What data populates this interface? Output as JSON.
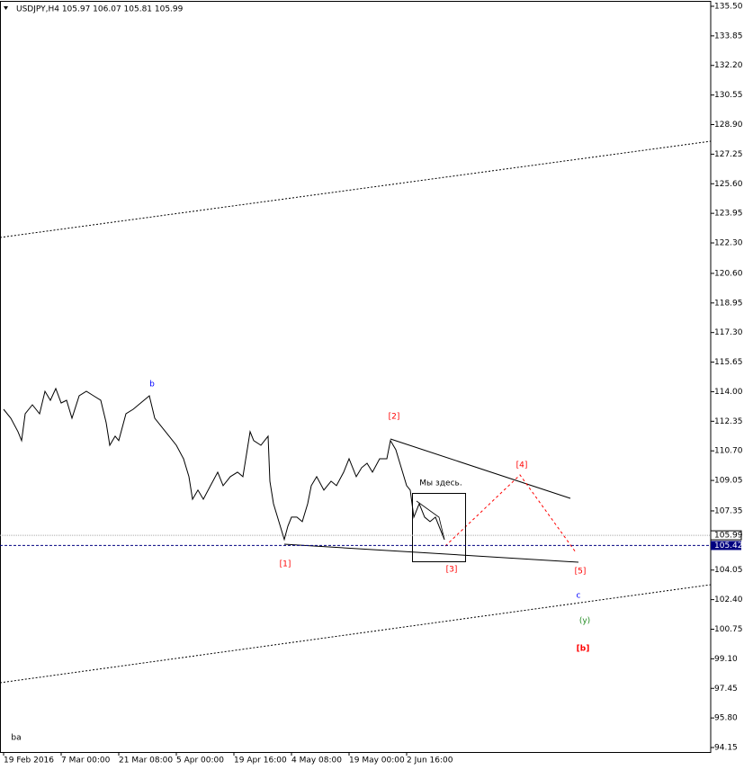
{
  "chart_data": {
    "type": "line",
    "title": "USDJPY,H4  105.97 106.07 105.81 105.99",
    "x": [
      0,
      2,
      4,
      5,
      6,
      8,
      10,
      11.5,
      13,
      14.5,
      16,
      17.5,
      19,
      21,
      23,
      25,
      27,
      28.5,
      29.5,
      31,
      32,
      34,
      36,
      39,
      40.5,
      42,
      44,
      46,
      48,
      50,
      51.5,
      52.5,
      54,
      55.5,
      57.5,
      59.5,
      61,
      63,
      65,
      66.5,
      67.5,
      68.5,
      69.5,
      71.5,
      73.5,
      74,
      75,
      76.5,
      78,
      79,
      80,
      81.5,
      83,
      84.5,
      85.5,
      87,
      89,
      91,
      92.5,
      94.5,
      96,
      98,
      99.5,
      101,
      102.5,
      104.5,
      106.5,
      107.5,
      109,
      110.5,
      112,
      113,
      114,
      115.5,
      117,
      118.5,
      120,
      121.5,
      122.5
    ],
    "values": [
      113.02,
      112.52,
      111.77,
      111.27,
      112.77,
      113.27,
      112.77,
      114.02,
      113.52,
      114.18,
      113.37,
      113.52,
      112.52,
      113.77,
      114.02,
      113.77,
      113.52,
      112.27,
      111.01,
      111.52,
      111.27,
      112.77,
      113.02,
      113.52,
      113.77,
      112.52,
      112.02,
      111.52,
      111.01,
      110.26,
      109.26,
      108.0,
      108.51,
      108.0,
      108.76,
      109.51,
      108.76,
      109.26,
      109.51,
      109.26,
      110.51,
      111.77,
      111.27,
      111.01,
      111.52,
      109.01,
      107.75,
      106.75,
      105.75,
      106.5,
      107.0,
      107.0,
      106.75,
      107.75,
      108.76,
      109.26,
      108.51,
      109.01,
      108.76,
      109.51,
      110.26,
      109.26,
      109.76,
      110.01,
      109.51,
      110.26,
      110.26,
      111.27,
      110.76,
      109.76,
      108.76,
      108.51,
      107.0,
      107.75,
      107.0,
      106.75,
      107.0,
      106.25,
      105.75
    ],
    "color": "#000000",
    "xlim": [
      -1,
      196.5
    ],
    "xticks": [
      {
        "value": 0,
        "label": "19 Feb 2016"
      },
      {
        "value": 16,
        "label": "7 Mar 00:00"
      },
      {
        "value": 32,
        "label": "21 Mar 08:00"
      },
      {
        "value": 48,
        "label": "5 Apr 00:00"
      },
      {
        "value": 64,
        "label": "19 Apr 16:00"
      },
      {
        "value": 80,
        "label": "4 May 08:00"
      },
      {
        "value": 96,
        "label": "19 May 00:00"
      },
      {
        "value": 112,
        "label": "2 Jun 16:00"
      }
    ],
    "ylim": [
      93.9,
      135.75
    ],
    "yticks": [
      {
        "value": 135.5,
        "label": "135.50"
      },
      133.85,
      {
        "value": 132.2,
        "label": "132.20"
      },
      130.55,
      {
        "value": 128.9,
        "label": "128.90"
      },
      127.25,
      {
        "value": 125.6,
        "label": "125.60"
      },
      123.95,
      {
        "value": 122.3,
        "label": "122.30"
      },
      {
        "value": 120.6,
        "label": "120.60"
      },
      118.95,
      {
        "value": 117.3,
        "label": "117.30"
      },
      115.65,
      {
        "value": 114.0,
        "label": "114.00"
      },
      112.35,
      {
        "value": 110.7,
        "label": "110.70"
      },
      109.05,
      107.35,
      104.05,
      {
        "value": 102.4,
        "label": "102.40"
      },
      100.75,
      {
        "value": 99.1,
        "label": "99.10"
      },
      97.45,
      {
        "value": 95.8,
        "label": "95.80"
      },
      94.15
    ],
    "current_price": 105.99,
    "level_price": 105.42,
    "annotations": [
      {
        "text": "b",
        "color": "#0000ff"
      },
      {
        "text": "[2]",
        "color": "#ff0000"
      },
      {
        "text": "[4]",
        "color": "#ff0000"
      },
      {
        "text": "[1]",
        "color": "#ff0000"
      },
      {
        "text": "[3]",
        "color": "#ff0000"
      },
      {
        "text": "[5]",
        "color": "#ff0000"
      },
      {
        "text": "c",
        "color": "#0000ff"
      },
      {
        "text": "(y)",
        "color": "#228b22"
      },
      {
        "text": "[b]",
        "color": "#ff0000"
      },
      {
        "text": "Мы здесь.",
        "color": "#000000"
      },
      {
        "text": "ba",
        "color": "#000000"
      }
    ]
  }
}
